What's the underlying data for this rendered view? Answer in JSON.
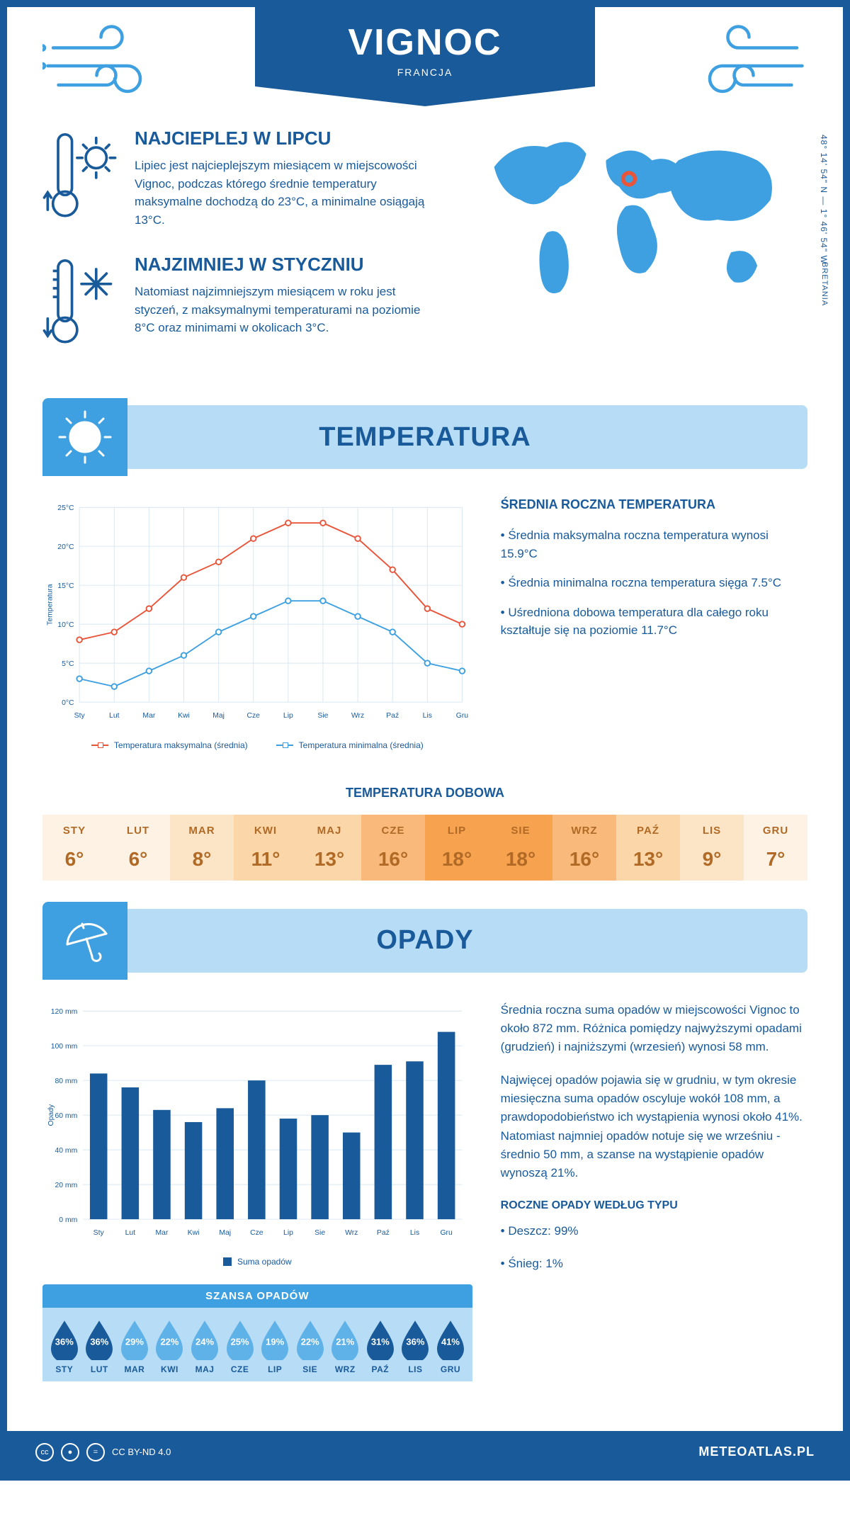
{
  "header": {
    "title": "VIGNOC",
    "subtitle": "FRANCJA",
    "coords": "48° 14' 54\" N — 1° 46' 54\" W",
    "region": "BRETANIA"
  },
  "facts": {
    "hot": {
      "title": "NAJCIEPLEJ W LIPCU",
      "text": "Lipiec jest najcieplejszym miesiącem w miejscowości Vignoc, podczas którego średnie temperatury maksymalne dochodzą do 23°C, a minimalne osiągają 13°C."
    },
    "cold": {
      "title": "NAJZIMNIEJ W STYCZNIU",
      "text": "Natomiast najzimniejszym miesiącem w roku jest styczeń, z maksymalnymi temperaturami na poziomie 8°C oraz minimami w okolicach 3°C."
    }
  },
  "sections": {
    "temp": "TEMPERATURA",
    "precip": "OPADY"
  },
  "temp_chart": {
    "type": "line",
    "ylabel": "Temperatura",
    "months": [
      "Sty",
      "Lut",
      "Mar",
      "Kwi",
      "Maj",
      "Cze",
      "Lip",
      "Sie",
      "Wrz",
      "Paź",
      "Lis",
      "Gru"
    ],
    "ylim": [
      0,
      25
    ],
    "ytick_step": 5,
    "ytick_labels": [
      "0°C",
      "5°C",
      "10°C",
      "15°C",
      "20°C",
      "25°C"
    ],
    "series_max": {
      "label": "Temperatura maksymalna (średnia)",
      "color": "#e8553a",
      "values": [
        8,
        9,
        12,
        16,
        18,
        21,
        23,
        23,
        21,
        17,
        12,
        10
      ]
    },
    "series_min": {
      "label": "Temperatura minimalna (średnia)",
      "color": "#3ea0e0",
      "values": [
        3,
        2,
        4,
        6,
        9,
        11,
        13,
        13,
        11,
        9,
        5,
        4
      ]
    },
    "grid_color": "#d8e6f2",
    "background": "#ffffff",
    "line_width": 2,
    "marker": "circle",
    "fontsize_axis": 11
  },
  "temp_info": {
    "title": "ŚREDNIA ROCZNA TEMPERATURA",
    "b1": "• Średnia maksymalna roczna temperatura wynosi 15.9°C",
    "b2": "• Średnia minimalna roczna temperatura sięga 7.5°C",
    "b3": "• Uśredniona dobowa temperatura dla całego roku kształtuje się na poziomie 11.7°C"
  },
  "daily_temp": {
    "title": "TEMPERATURA DOBOWA",
    "months": [
      "STY",
      "LUT",
      "MAR",
      "KWI",
      "MAJ",
      "CZE",
      "LIP",
      "SIE",
      "WRZ",
      "PAŹ",
      "LIS",
      "GRU"
    ],
    "values": [
      "6°",
      "6°",
      "8°",
      "11°",
      "13°",
      "16°",
      "18°",
      "18°",
      "16°",
      "13°",
      "9°",
      "7°"
    ],
    "colors": [
      "#fdf2e4",
      "#fdf2e4",
      "#fce4c7",
      "#fbd6a8",
      "#fbd6a8",
      "#f9b97a",
      "#f7a24f",
      "#f7a24f",
      "#f9b97a",
      "#fbd6a8",
      "#fce4c7",
      "#fdf2e4"
    ],
    "text_color": "#b06a25"
  },
  "precip_chart": {
    "type": "bar",
    "ylabel": "Opady",
    "months": [
      "Sty",
      "Lut",
      "Mar",
      "Kwi",
      "Maj",
      "Cze",
      "Lip",
      "Sie",
      "Wrz",
      "Paź",
      "Lis",
      "Gru"
    ],
    "values": [
      84,
      76,
      63,
      56,
      64,
      80,
      58,
      60,
      50,
      89,
      91,
      108
    ],
    "ylim": [
      0,
      120
    ],
    "ytick_step": 20,
    "ytick_labels": [
      "0 mm",
      "20 mm",
      "40 mm",
      "60 mm",
      "80 mm",
      "100 mm",
      "120 mm"
    ],
    "bar_color": "#195a9a",
    "grid_color": "#d8e6f2",
    "background": "#ffffff",
    "bar_width": 0.55,
    "legend_label": "Suma opadów",
    "fontsize_axis": 11
  },
  "precip_info": {
    "p1": "Średnia roczna suma opadów w miejscowości Vignoc to około 872 mm. Różnica pomiędzy najwyższymi opadami (grudzień) i najniższymi (wrzesień) wynosi 58 mm.",
    "p2": "Najwięcej opadów pojawia się w grudniu, w tym okresie miesięczna suma opadów oscyluje wokół 108 mm, a prawdopodobieństwo ich wystąpienia wynosi około 41%. Natomiast najmniej opadów notuje się we wrześniu - średnio 50 mm, a szanse na wystąpienie opadów wynoszą 21%.",
    "type_title": "ROCZNE OPADY WEDŁUG TYPU",
    "type_rain": "• Deszcz: 99%",
    "type_snow": "• Śnieg: 1%"
  },
  "chance": {
    "title": "SZANSA OPADÓW",
    "months": [
      "STY",
      "LUT",
      "MAR",
      "KWI",
      "MAJ",
      "CZE",
      "LIP",
      "SIE",
      "WRZ",
      "PAŹ",
      "LIS",
      "GRU"
    ],
    "values": [
      "36%",
      "36%",
      "29%",
      "22%",
      "24%",
      "25%",
      "19%",
      "22%",
      "21%",
      "31%",
      "36%",
      "41%"
    ],
    "light_color": "#5fb2e8",
    "dark_color": "#195a9a",
    "dark_threshold": 30
  },
  "footer": {
    "license": "CC BY-ND 4.0",
    "site": "METEOATLAS.PL"
  }
}
